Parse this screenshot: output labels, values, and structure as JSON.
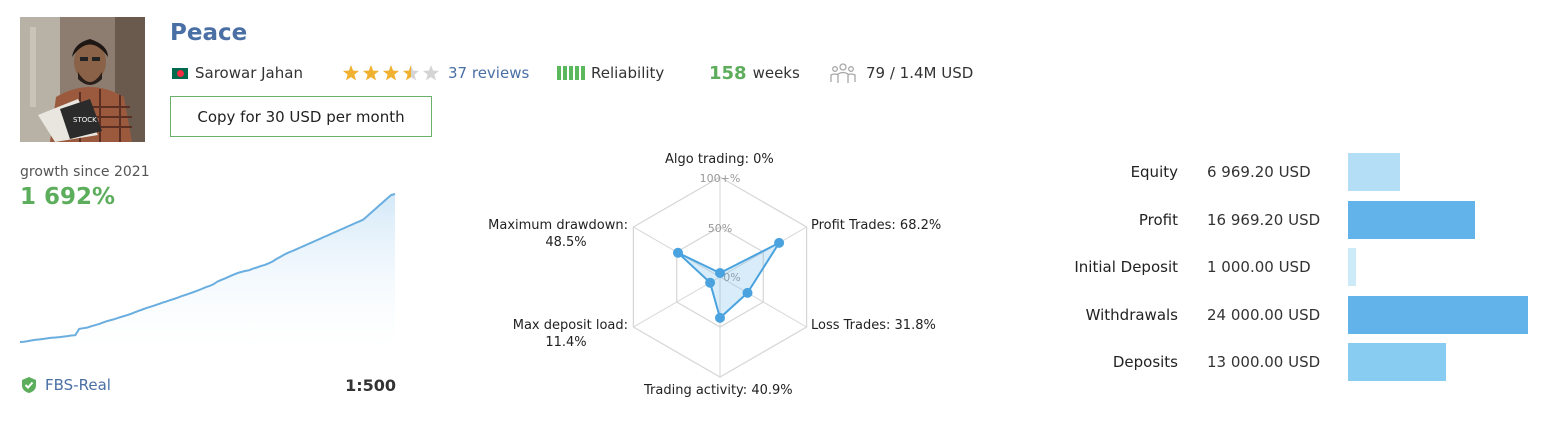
{
  "profile": {
    "name": "Peace",
    "author": "Sarowar Jahan",
    "rating": 3.5,
    "reviews": "37 reviews",
    "reliability_label": "Reliability",
    "weeks_value": "158",
    "weeks_unit": "weeks",
    "subscribers": "79 / 1.4M USD",
    "copy_button": "Copy for 30 USD per month",
    "icons": [
      "flag-bangladesh-icon",
      "star-icon",
      "reliability-bars-icon",
      "subscribers-icon",
      "shield-check-icon"
    ]
  },
  "growth": {
    "label": "growth since 2021",
    "value": "1 692%",
    "broker": "FBS-Real",
    "leverage": "1:500"
  },
  "radar": {
    "labels": {
      "algo": "Algo trading: 0%",
      "profit": "Profit Trades: 68.2%",
      "loss": "Loss Trades: 31.8%",
      "activity": "Trading activity: 40.9%",
      "deposit_load_title": "Max deposit load:",
      "deposit_load_value": "11.4%",
      "drawdown_title": "Maximum drawdown:",
      "drawdown_value": "48.5%"
    },
    "scale": {
      "max": "100+%",
      "mid": "50%",
      "zero": "0%"
    }
  },
  "balances": [
    {
      "label": "Equity",
      "value": "6 969.20 USD"
    },
    {
      "label": "Profit",
      "value": "16 969.20 USD"
    },
    {
      "label": "Initial Deposit",
      "value": "1 000.00 USD"
    },
    {
      "label": "Withdrawals",
      "value": "24 000.00 USD"
    },
    {
      "label": "Deposits",
      "value": "13 000.00 USD"
    }
  ],
  "chart_data": [
    {
      "type": "line",
      "title": "growth since 2021",
      "x": [
        0,
        1,
        2,
        3,
        4,
        5,
        6,
        7,
        8,
        9,
        10,
        11,
        12,
        13,
        14,
        15,
        16,
        17,
        18,
        19,
        20,
        21,
        22,
        23,
        24,
        25,
        26,
        27,
        28,
        29,
        30,
        31,
        32,
        33,
        34,
        35,
        36,
        37,
        38,
        39,
        40,
        41,
        42,
        43,
        44,
        45,
        46,
        47,
        48,
        49,
        50,
        51,
        52,
        53,
        54,
        55,
        56,
        57,
        58,
        59,
        60,
        61,
        62,
        63,
        64,
        65,
        66,
        67,
        68,
        69,
        70,
        71,
        72,
        73,
        74,
        75,
        76,
        77,
        78,
        79,
        80,
        81,
        82,
        83,
        84,
        85,
        86,
        87,
        88,
        89,
        90,
        91,
        92,
        93,
        94,
        95
      ],
      "values": [
        0,
        4,
        10,
        18,
        25,
        30,
        36,
        42,
        48,
        52,
        56,
        62,
        68,
        74,
        78,
        150,
        158,
        165,
        180,
        192,
        205,
        222,
        238,
        250,
        262,
        278,
        292,
        305,
        320,
        338,
        355,
        372,
        388,
        402,
        416,
        432,
        448,
        462,
        478,
        492,
        508,
        525,
        540,
        556,
        572,
        588,
        606,
        625,
        640,
        660,
        690,
        710,
        728,
        748,
        768,
        786,
        800,
        812,
        820,
        838,
        852,
        868,
        882,
        900,
        920,
        950,
        975,
        1000,
        1022,
        1040,
        1060,
        1080,
        1100,
        1120,
        1140,
        1160,
        1180,
        1200,
        1220,
        1240,
        1260,
        1280,
        1300,
        1320,
        1340,
        1360,
        1380,
        1400,
        1440,
        1480,
        1520,
        1560,
        1600,
        1640,
        1680,
        1692
      ],
      "ylim": [
        0,
        1692
      ]
    },
    {
      "type": "radar",
      "categories": [
        "Algo trading",
        "Profit Trades",
        "Loss Trades",
        "Trading activity",
        "Max deposit load",
        "Maximum drawdown"
      ],
      "values": [
        0,
        68.2,
        31.8,
        40.9,
        11.4,
        48.5
      ],
      "range": [
        0,
        100
      ]
    },
    {
      "type": "bar",
      "orientation": "horizontal",
      "categories": [
        "Equity",
        "Profit",
        "Initial Deposit",
        "Withdrawals",
        "Deposits"
      ],
      "values": [
        6969.2,
        16969.2,
        1000.0,
        24000.0,
        13000.0
      ],
      "colors": [
        "#b3def5",
        "#62b3ea",
        "#cdeaf9",
        "#62b3ea",
        "#88ccf1"
      ]
    }
  ]
}
